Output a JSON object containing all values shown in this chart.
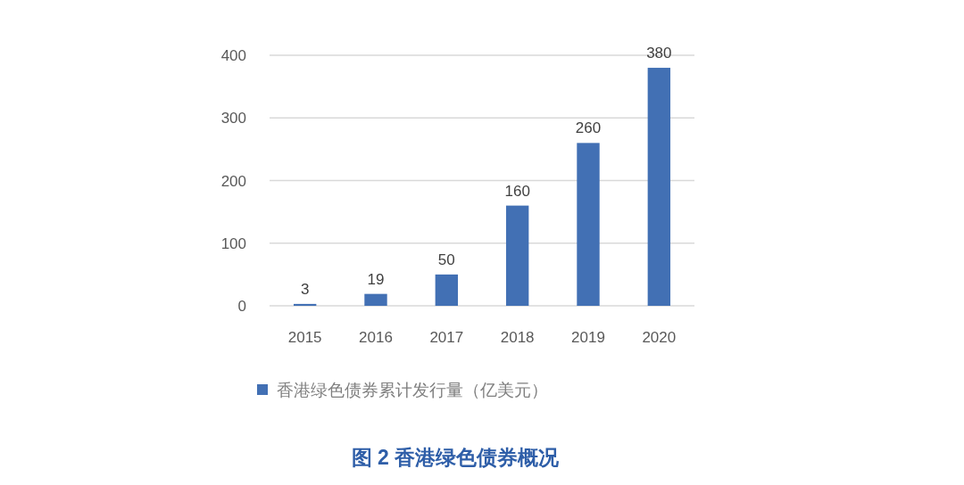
{
  "chart_data": {
    "type": "bar",
    "annotations": [
      "图 2 香港绿色债券概况"
    ],
    "categories": [
      "2015",
      "2016",
      "2017",
      "2018",
      "2019",
      "2020"
    ],
    "series": [
      {
        "name": "香港绿色债券累计发行量（亿美元）",
        "color": "#4270b4",
        "values": [
          3,
          19,
          50,
          160,
          260,
          380
        ]
      }
    ],
    "ylim": [
      0,
      400
    ],
    "yticks": [
      0,
      100,
      200,
      300,
      400
    ],
    "grid": "y",
    "legend": "bottom",
    "data_labels": true
  }
}
